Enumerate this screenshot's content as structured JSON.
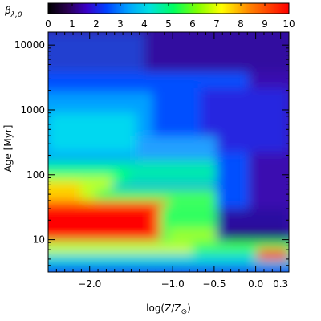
{
  "chart_data": {
    "type": "heatmap",
    "title": "",
    "colorbar": {
      "label": "β",
      "label_subscript": "λ,0",
      "min": 0,
      "max": 10,
      "ticks": [
        "0",
        "1",
        "2",
        "3",
        "4",
        "5",
        "6",
        "7",
        "8",
        "9",
        "10"
      ],
      "colors": [
        "#000000",
        "#2a0050",
        "#3a00c8",
        "#0050ff",
        "#00c8ff",
        "#00ff80",
        "#80ff00",
        "#ffff00",
        "#ff8000",
        "#ff0000"
      ]
    },
    "xlabel_main": "log(Z/Z",
    "xlabel_sub": "⊙",
    "xlabel_close": ")",
    "ylabel": "Age [Myr]",
    "xlim": [
      -2.5,
      0.4
    ],
    "ylim_log10": [
      0.5,
      4.2
    ],
    "yscale": "log",
    "x_ticks": [
      {
        "value": -2.0,
        "label": "−2.0"
      },
      {
        "value": -1.0,
        "label": "−1.0"
      },
      {
        "value": -0.5,
        "label": "−0.5"
      },
      {
        "value": 0.0,
        "label": "0.0"
      },
      {
        "value": 0.3,
        "label": "0.3"
      }
    ],
    "y_ticks": [
      {
        "value": 10,
        "label": "10"
      },
      {
        "value": 100,
        "label": "100"
      },
      {
        "value": 1000,
        "label": "1000"
      },
      {
        "value": 10000,
        "label": "10000"
      }
    ],
    "regions_approx": [
      {
        "age_range_myr": [
          3,
          8
        ],
        "metallicity": "all",
        "beta_level": "6-7 (green/yellow band)"
      },
      {
        "age_range_myr": [
          8,
          30
        ],
        "metallicity": "low (< -1.5)",
        "beta_level": "~10 (red)"
      },
      {
        "age_range_myr": [
          30,
          100
        ],
        "metallicity": "low",
        "beta_level": "5-8"
      },
      {
        "age_range_myr": [
          100,
          1000
        ],
        "metallicity": "low",
        "beta_level": "3-4 (cyan)"
      },
      {
        "age_range_myr": [
          1000,
          15000
        ],
        "metallicity": "all",
        "beta_level": "1-2 (blue/purple)"
      },
      {
        "age_range_myr": [
          8,
          15
        ],
        "metallicity": "high (> -0.3)",
        "beta_level": "~0.5 (dark)"
      }
    ]
  }
}
